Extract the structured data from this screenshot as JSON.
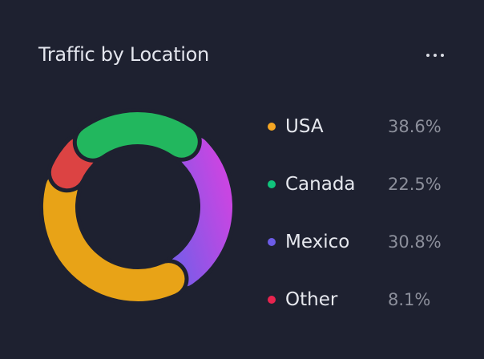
{
  "header": {
    "title": "Traffic by Location",
    "more_icon": "more-horizontal-icon"
  },
  "colors": {
    "background": "#1e2130"
  },
  "chart_data": {
    "type": "pie",
    "style": "donut",
    "title": "Traffic by Location",
    "legend_position": "right",
    "slices": [
      {
        "name": "USA",
        "value": 38.6,
        "label": "38.6%",
        "color": "#e8a317",
        "dot": "#f5a623"
      },
      {
        "name": "Canada",
        "value": 22.5,
        "label": "22.5%",
        "color": "#22b75e",
        "dot": "#10c47c"
      },
      {
        "name": "Mexico",
        "value": 30.8,
        "label": "30.8%",
        "color": "#a24ee0",
        "gradient": [
          "#8359ea",
          "#c646e0"
        ],
        "dot": "#6c5ce7"
      },
      {
        "name": "Other",
        "value": 8.1,
        "label": "8.1%",
        "color": "#dc4343",
        "dot": "#e8244f"
      }
    ]
  }
}
